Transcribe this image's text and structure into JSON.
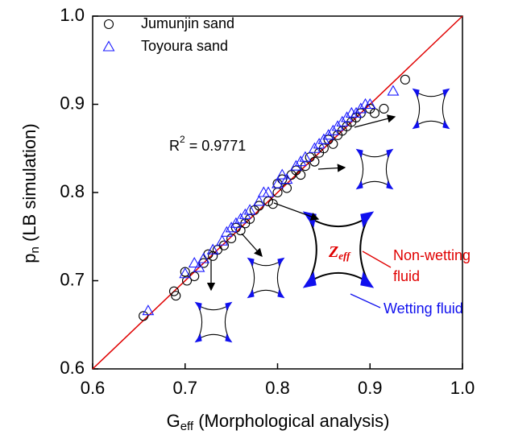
{
  "chart_data": {
    "type": "scatter",
    "x_label": {
      "main": "G",
      "sub": "eff",
      "rest": " (Morphological analysis)"
    },
    "y_label": {
      "main": "p",
      "sub": "n",
      "rest": " (LB simulation)"
    },
    "annotations": {
      "r2_main": "R",
      "r2_sup": "2",
      "r2_rest": " = 0.9771",
      "z_main": "Z",
      "z_sub": "eff",
      "nonwetting_1": "Non-wetting",
      "nonwetting_2": "fluid",
      "wetting": "Wetting fluid"
    },
    "xlim": [
      0.6,
      1.0
    ],
    "ylim": [
      0.6,
      1.0
    ],
    "xticks": [
      0.6,
      0.7,
      0.8,
      0.9,
      {
        "value": 1,
        "label": "1.0"
      }
    ],
    "yticks": [
      0.6,
      0.7,
      0.8,
      0.9,
      {
        "value": 1,
        "label": "1.0"
      }
    ],
    "reference_line_color": "#e00000",
    "legend": "upper left",
    "series": [
      {
        "name": "Jumunjin sand",
        "color": "#000000",
        "marker": "circle",
        "x": [
          0.655,
          0.688,
          0.69,
          0.7,
          0.702,
          0.71,
          0.72,
          0.725,
          0.73,
          0.735,
          0.742,
          0.75,
          0.755,
          0.76,
          0.765,
          0.77,
          0.775,
          0.78,
          0.79,
          0.795,
          0.8,
          0.8,
          0.805,
          0.81,
          0.815,
          0.82,
          0.825,
          0.83,
          0.835,
          0.84,
          0.845,
          0.85,
          0.855,
          0.86,
          0.865,
          0.87,
          0.875,
          0.88,
          0.885,
          0.89,
          0.9,
          0.905,
          0.915,
          0.938
        ],
        "values": [
          0.66,
          0.688,
          0.683,
          0.71,
          0.7,
          0.705,
          0.72,
          0.73,
          0.728,
          0.735,
          0.74,
          0.748,
          0.76,
          0.757,
          0.765,
          0.77,
          0.78,
          0.785,
          0.79,
          0.787,
          0.8,
          0.81,
          0.815,
          0.805,
          0.82,
          0.825,
          0.82,
          0.83,
          0.84,
          0.835,
          0.845,
          0.85,
          0.86,
          0.855,
          0.865,
          0.87,
          0.875,
          0.88,
          0.885,
          0.89,
          0.895,
          0.89,
          0.895,
          0.928
        ]
      },
      {
        "name": "Toyoura sand",
        "color": "#1a1aff",
        "marker": "triangle",
        "x": [
          0.66,
          0.7,
          0.71,
          0.715,
          0.72,
          0.73,
          0.74,
          0.745,
          0.75,
          0.755,
          0.76,
          0.765,
          0.77,
          0.78,
          0.785,
          0.79,
          0.8,
          0.805,
          0.81,
          0.82,
          0.825,
          0.83,
          0.84,
          0.845,
          0.85,
          0.855,
          0.86,
          0.865,
          0.87,
          0.875,
          0.88,
          0.885,
          0.89,
          0.895,
          0.9,
          0.925
        ],
        "values": [
          0.666,
          0.708,
          0.72,
          0.715,
          0.725,
          0.735,
          0.745,
          0.755,
          0.76,
          0.765,
          0.77,
          0.775,
          0.78,
          0.79,
          0.8,
          0.8,
          0.81,
          0.82,
          0.815,
          0.83,
          0.835,
          0.84,
          0.85,
          0.855,
          0.86,
          0.865,
          0.87,
          0.875,
          0.88,
          0.885,
          0.89,
          0.89,
          0.895,
          0.9,
          0.9,
          0.915
        ]
      }
    ]
  }
}
